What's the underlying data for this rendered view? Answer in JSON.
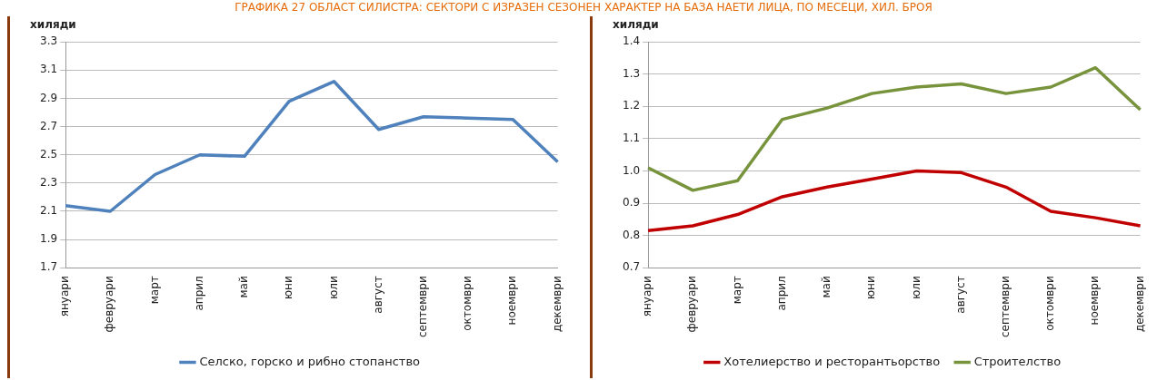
{
  "chart_data": [
    {
      "type": "line",
      "title": "ГРАФИКА 27 ОБЛАСТ СИЛИСТРА: СЕКТОРИ С ИЗРАЗЕН СЕЗОНЕН ХАРАКТЕР НА БАЗА НАЕТИ ЛИЦА, ПО МЕСЕЦИ, ХИЛ. БРОЯ",
      "ylabel": "хиляди",
      "categories": [
        "януари",
        "февруари",
        "март",
        "април",
        "май",
        "юни",
        "юли",
        "август",
        "септември",
        "октомври",
        "ноември",
        "декември"
      ],
      "series": [
        {
          "name": "Селско, горско и рибно стопанство",
          "color": "#4f81bd",
          "values": [
            2.14,
            2.1,
            2.36,
            2.5,
            2.49,
            2.88,
            3.02,
            2.68,
            2.77,
            2.76,
            2.75,
            2.45
          ]
        }
      ],
      "ylim": [
        1.7,
        3.3
      ],
      "yticks": [
        {
          "value": 1.7,
          "label": "1.7"
        },
        {
          "value": 1.9,
          "label": "1.9"
        },
        {
          "value": 2.1,
          "label": "2.1"
        },
        {
          "value": 2.3,
          "label": "2.3"
        },
        {
          "value": 2.5,
          "label": "2.5"
        },
        {
          "value": 2.7,
          "label": "2.7"
        },
        {
          "value": 2.9,
          "label": "2.9"
        },
        {
          "value": 3.1,
          "label": "3.1"
        },
        {
          "value": 3.3,
          "label": "3.3"
        }
      ],
      "grid": "y",
      "legend": "bottom",
      "marker": "none"
    },
    {
      "type": "line",
      "ylabel": "хиляди",
      "categories": [
        "януари",
        "февруари",
        "март",
        "април",
        "май",
        "юни",
        "юли",
        "август",
        "септември",
        "октомври",
        "ноември",
        "декември"
      ],
      "series": [
        {
          "name": "Хотелиерство и ресторантьорство",
          "color": "#c00000",
          "values": [
            0.815,
            0.83,
            0.865,
            0.92,
            0.95,
            0.975,
            1.0,
            0.995,
            0.95,
            0.875,
            0.855,
            0.83
          ]
        },
        {
          "name": "Строителство",
          "color": "#77933c",
          "values": [
            1.01,
            0.94,
            0.97,
            1.16,
            1.195,
            1.24,
            1.26,
            1.27,
            1.24,
            1.26,
            1.32,
            1.19
          ]
        }
      ],
      "ylim": [
        0.7,
        1.4
      ],
      "yticks": [
        {
          "value": 0.7,
          "label": "0.7"
        },
        {
          "value": 0.8,
          "label": "0.8"
        },
        {
          "value": 0.9,
          "label": "0.9"
        },
        {
          "value": 1.0,
          "label": "1.0"
        },
        {
          "value": 1.1,
          "label": "1.1"
        },
        {
          "value": 1.2,
          "label": "1.2"
        },
        {
          "value": 1.3,
          "label": "1.3"
        },
        {
          "value": 1.4,
          "label": "1.4"
        }
      ],
      "grid": "y",
      "legend": "bottom",
      "marker": "none"
    }
  ]
}
